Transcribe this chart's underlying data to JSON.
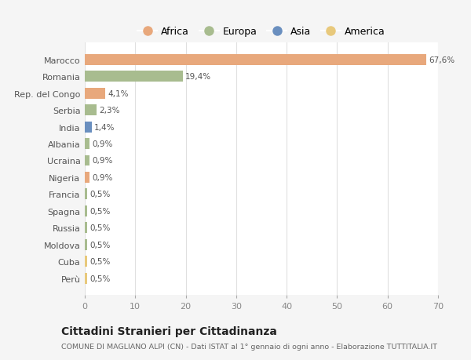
{
  "categories": [
    "Marocco",
    "Romania",
    "Rep. del Congo",
    "Serbia",
    "India",
    "Albania",
    "Ucraina",
    "Nigeria",
    "Francia",
    "Spagna",
    "Russia",
    "Moldova",
    "Cuba",
    "Perù"
  ],
  "values": [
    67.6,
    19.4,
    4.1,
    2.3,
    1.4,
    0.9,
    0.9,
    0.9,
    0.5,
    0.5,
    0.5,
    0.5,
    0.5,
    0.5
  ],
  "labels": [
    "67,6%",
    "19,4%",
    "4,1%",
    "2,3%",
    "1,4%",
    "0,9%",
    "0,9%",
    "0,9%",
    "0,5%",
    "0,5%",
    "0,5%",
    "0,5%",
    "0,5%",
    "0,5%"
  ],
  "colors": [
    "#e8a87c",
    "#a8bc8f",
    "#e8a87c",
    "#a8bc8f",
    "#6a8fbf",
    "#a8bc8f",
    "#a8bc8f",
    "#e8a87c",
    "#a8bc8f",
    "#a8bc8f",
    "#a8bc8f",
    "#a8bc8f",
    "#e8c97c",
    "#e8c97c"
  ],
  "legend": {
    "Africa": "#e8a87c",
    "Europa": "#a8bc8f",
    "Asia": "#6a8fbf",
    "America": "#e8c97c"
  },
  "title": "Cittadini Stranieri per Cittadinanza",
  "subtitle": "COMUNE DI MAGLIANO ALPI (CN) - Dati ISTAT al 1° gennaio di ogni anno - Elaborazione TUTTITALIA.IT",
  "xlim": [
    0,
    70
  ],
  "xticks": [
    0,
    10,
    20,
    30,
    40,
    50,
    60,
    70
  ],
  "background_color": "#f5f5f5",
  "bar_background": "#ffffff",
  "grid_color": "#e0e0e0"
}
